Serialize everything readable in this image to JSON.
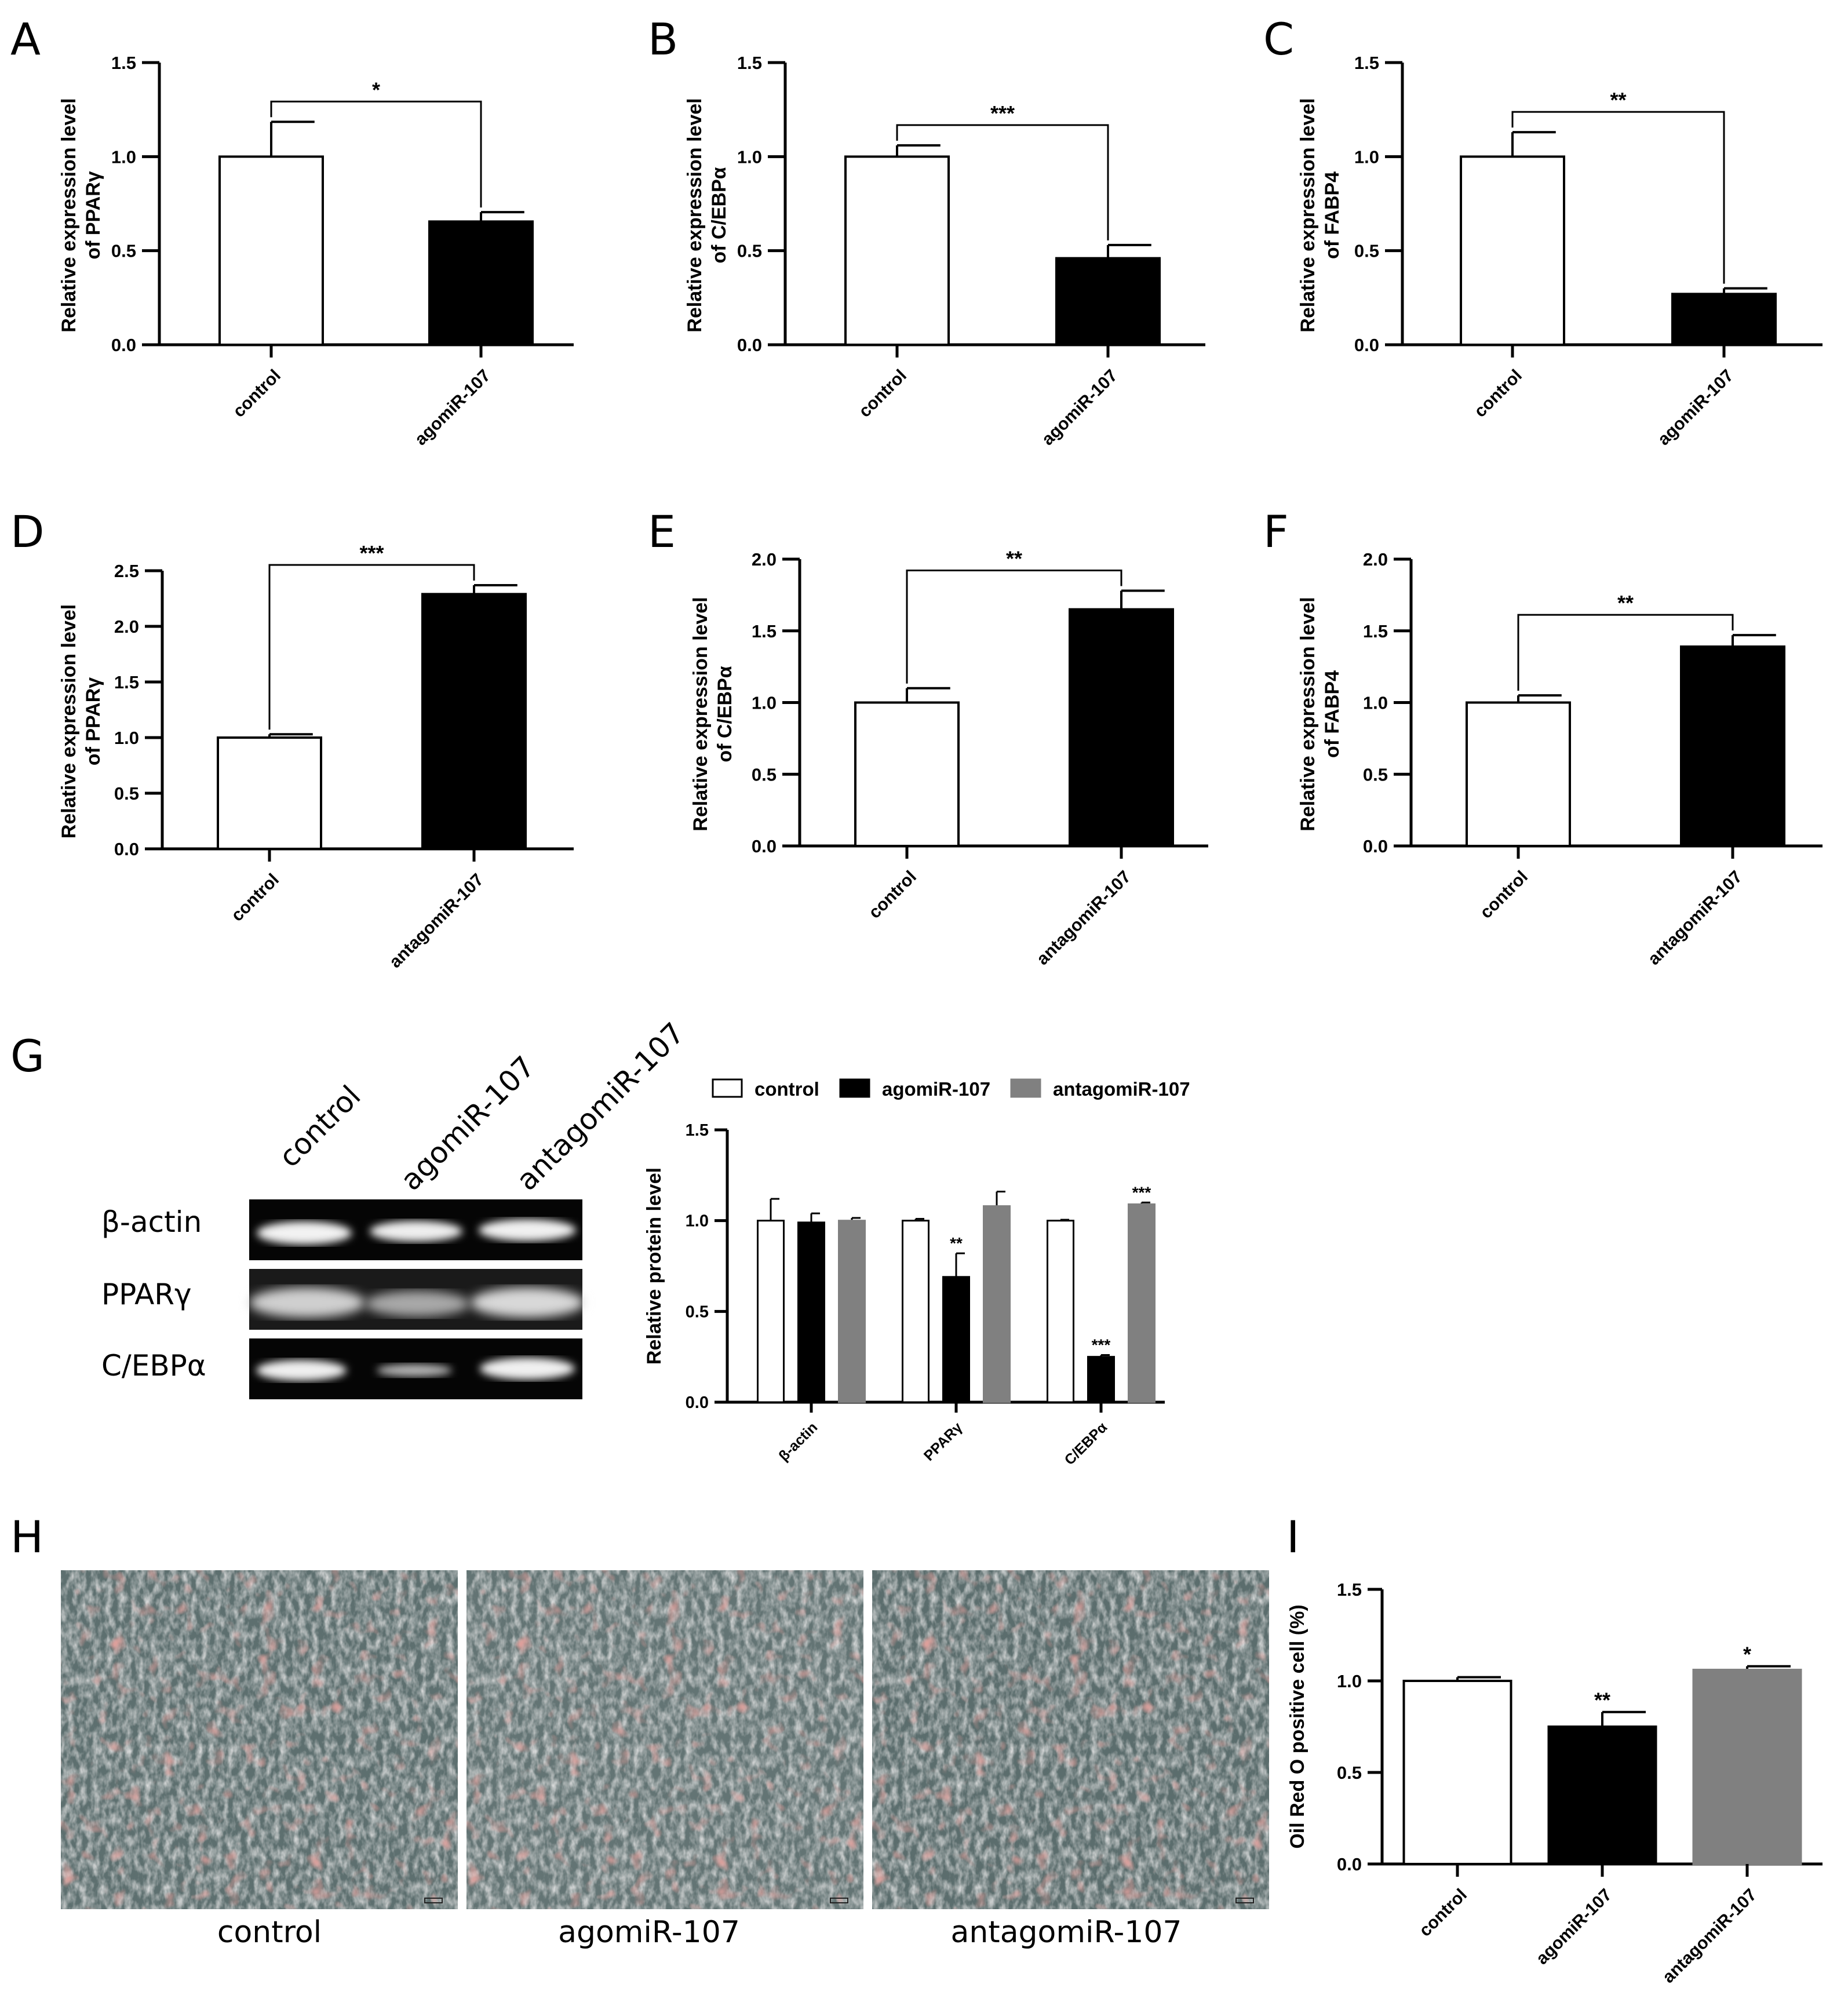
{
  "panel_labels": {
    "A": "A",
    "B": "B",
    "C": "C",
    "D": "D",
    "E": "E",
    "F": "F",
    "G": "G",
    "H": "H",
    "I": "I"
  },
  "chart_data": [
    {
      "id": "A",
      "type": "bar",
      "categories": [
        "control",
        "agomiR-107"
      ],
      "values": [
        1.0,
        0.655
      ],
      "errors": [
        0.185,
        0.05
      ],
      "ylabel": "Relative expression level of PPARγ",
      "ylabel_lines": [
        "Relative expression level",
        "of PPARγ"
      ],
      "yticks": [
        "0.0",
        "0.5",
        "1.0",
        "1.5"
      ],
      "ylim": [
        0,
        1.5
      ],
      "significance": "*",
      "bar_colors": [
        "#ffffff",
        "#000000"
      ]
    },
    {
      "id": "B",
      "type": "bar",
      "categories": [
        "control",
        "agomiR-107"
      ],
      "values": [
        1.0,
        0.46
      ],
      "errors": [
        0.06,
        0.07
      ],
      "ylabel": "Relative expression level of C/EBPα",
      "ylabel_lines": [
        "Relative expression level",
        "of C/EBPα"
      ],
      "yticks": [
        "0.0",
        "0.5",
        "1.0",
        "1.5"
      ],
      "ylim": [
        0,
        1.5
      ],
      "significance": "***",
      "bar_colors": [
        "#ffffff",
        "#000000"
      ]
    },
    {
      "id": "C",
      "type": "bar",
      "categories": [
        "control",
        "agomiR-107"
      ],
      "values": [
        1.0,
        0.27
      ],
      "errors": [
        0.13,
        0.03
      ],
      "ylabel": "Relative expression level of FABP4",
      "ylabel_lines": [
        "Relative expression level",
        "of FABP4"
      ],
      "yticks": [
        "0.0",
        "0.5",
        "1.0",
        "1.5"
      ],
      "ylim": [
        0,
        1.5
      ],
      "significance": "**",
      "bar_colors": [
        "#ffffff",
        "#000000"
      ]
    },
    {
      "id": "D",
      "type": "bar",
      "categories": [
        "control",
        "antagomiR-107"
      ],
      "values": [
        1.0,
        2.29
      ],
      "errors": [
        0.03,
        0.08
      ],
      "ylabel": "Relative expression level of PPARγ",
      "ylabel_lines": [
        "Relative expression level",
        "of PPARγ"
      ],
      "yticks": [
        "0.0",
        "0.5",
        "1.0",
        "1.5",
        "2.0",
        "2.5"
      ],
      "ylim": [
        0,
        2.5
      ],
      "significance": "***",
      "bar_colors": [
        "#ffffff",
        "#000000"
      ]
    },
    {
      "id": "E",
      "type": "bar",
      "categories": [
        "control",
        "antagomiR-107"
      ],
      "values": [
        1.0,
        1.65
      ],
      "errors": [
        0.1,
        0.13
      ],
      "ylabel": "Relative expression level of C/EBPα",
      "ylabel_lines": [
        "Relative expression level",
        "of C/EBPα"
      ],
      "yticks": [
        "0.0",
        "0.5",
        "1.0",
        "1.5",
        "2.0"
      ],
      "ylim": [
        0,
        2.0
      ],
      "significance": "**",
      "bar_colors": [
        "#ffffff",
        "#000000"
      ]
    },
    {
      "id": "F",
      "type": "bar",
      "categories": [
        "control",
        "antagomiR-107"
      ],
      "values": [
        1.0,
        1.39
      ],
      "errors": [
        0.05,
        0.08
      ],
      "ylabel": "Relative expression level of FABP4",
      "ylabel_lines": [
        "Relative expression level",
        "of FABP4"
      ],
      "yticks": [
        "0.0",
        "0.5",
        "1.0",
        "1.5",
        "2.0"
      ],
      "ylim": [
        0,
        2.0
      ],
      "significance": "**",
      "bar_colors": [
        "#ffffff",
        "#000000"
      ]
    },
    {
      "id": "G",
      "type": "bar",
      "categories": [
        "β-actin",
        "PPARγ",
        "C/EBPα"
      ],
      "series": [
        {
          "name": "control",
          "values": [
            1.0,
            1.0,
            1.0
          ],
          "errors": [
            0.12,
            0.01,
            0.005
          ],
          "color": "#ffffff",
          "stars": [
            "",
            "",
            ""
          ]
        },
        {
          "name": "agomiR-107",
          "values": [
            0.99,
            0.69,
            0.25
          ],
          "errors": [
            0.05,
            0.13,
            0.01
          ],
          "color": "#000000",
          "stars": [
            "",
            "**",
            "***"
          ]
        },
        {
          "name": "antagomiR-107",
          "values": [
            1.0,
            1.08,
            1.09
          ],
          "errors": [
            0.015,
            0.08,
            0.01
          ],
          "color": "#808080",
          "stars": [
            "",
            "",
            "***"
          ]
        }
      ],
      "ylabel": "Relative protein level",
      "yticks": [
        "0.0",
        "0.5",
        "1.0",
        "1.5"
      ],
      "ylim": [
        0,
        1.5
      ],
      "legend": "top"
    },
    {
      "id": "I",
      "type": "bar",
      "categories": [
        "control",
        "agomiR-107",
        "antagomiR-107"
      ],
      "values": [
        1.0,
        0.75,
        1.06
      ],
      "errors": [
        0.02,
        0.08,
        0.02
      ],
      "stars": [
        "",
        "**",
        "*"
      ],
      "ylabel": "Oil Red O positive cell (%)",
      "yticks": [
        "0.0",
        "0.5",
        "1.0",
        "1.5"
      ],
      "ylim": [
        0,
        1.5
      ],
      "bar_colors": [
        "#ffffff",
        "#000000",
        "#808080"
      ]
    }
  ],
  "western_blot": {
    "lanes": [
      "control",
      "agomiR-107",
      "antagomiR-107"
    ],
    "rows": [
      "β-actin",
      "PPARγ",
      "C/EBPα"
    ]
  },
  "micrographs": {
    "labels": [
      "control",
      "agomiR-107",
      "antagomiR-107"
    ]
  }
}
